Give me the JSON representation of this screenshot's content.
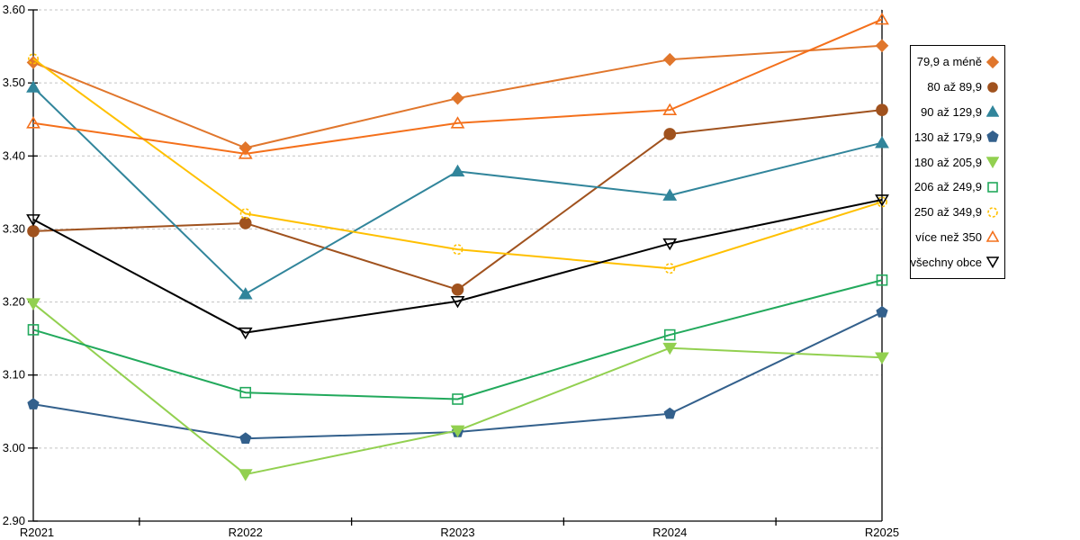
{
  "chart_data": {
    "type": "line",
    "title": "",
    "xlabel": "",
    "ylabel": "",
    "x": [
      "R2021",
      "R2022",
      "R2023",
      "R2024",
      "R2025"
    ],
    "ylim": [
      2.9,
      3.6
    ],
    "ytick_step": 0.1,
    "ytick_labels": [
      "2.90",
      "3.00",
      "3.10",
      "3.20",
      "3.30",
      "3.40",
      "3.50",
      "3.60"
    ],
    "grid": "horizontal-dashed",
    "legend_position": "right",
    "series": [
      {
        "name": "79,9 a méně",
        "color": "#E0762C",
        "marker": "diamond",
        "filled": true,
        "values": [
          3.528,
          3.411,
          3.479,
          3.532,
          3.551
        ]
      },
      {
        "name": "80 až 89,9",
        "color": "#A0521E",
        "marker": "circle",
        "filled": true,
        "values": [
          3.297,
          3.308,
          3.217,
          3.43,
          3.463
        ]
      },
      {
        "name": "90 až 129,9",
        "color": "#31859B",
        "marker": "triangle-up",
        "filled": true,
        "values": [
          3.494,
          3.211,
          3.379,
          3.346,
          3.418
        ]
      },
      {
        "name": "130 až 179,9",
        "color": "#33608C",
        "marker": "pentagon",
        "filled": true,
        "values": [
          3.06,
          3.013,
          3.022,
          3.047,
          3.186
        ]
      },
      {
        "name": "180 až 205,9",
        "color": "#92D050",
        "marker": "triangle-down",
        "filled": true,
        "values": [
          3.198,
          2.964,
          3.024,
          3.137,
          3.124
        ]
      },
      {
        "name": "206 až 249,9",
        "color": "#22A95C",
        "marker": "square",
        "filled": false,
        "values": [
          3.162,
          3.076,
          3.067,
          3.155,
          3.23
        ]
      },
      {
        "name": "250 až 349,9",
        "color": "#FFC000",
        "marker": "circle-dashed",
        "filled": false,
        "values": [
          3.533,
          3.321,
          3.272,
          3.246,
          3.337
        ]
      },
      {
        "name": "více než 350",
        "color": "#F4701B",
        "marker": "triangle-up",
        "filled": false,
        "values": [
          3.445,
          3.403,
          3.445,
          3.463,
          3.587
        ]
      },
      {
        "name": "všechny obce",
        "color": "#000000",
        "marker": "triangle-down",
        "filled": false,
        "values": [
          3.313,
          3.158,
          3.201,
          3.28,
          3.34
        ]
      }
    ]
  },
  "style": {
    "grid_color": "#C3C3C3",
    "axis_color": "#000000",
    "text_color": "#000000",
    "legend_border_color": "#000000"
  }
}
